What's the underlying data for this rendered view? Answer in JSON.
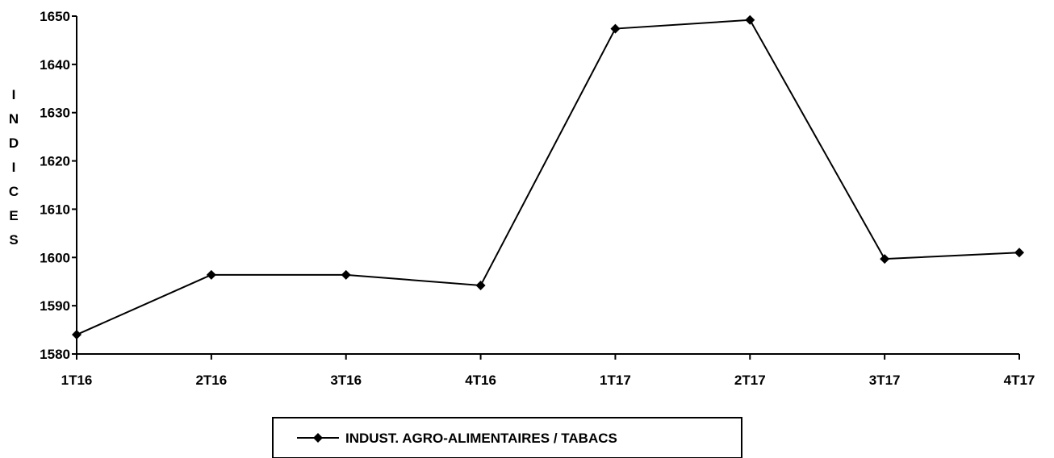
{
  "chart_data": {
    "type": "line",
    "categories": [
      "1T16",
      "2T16",
      "3T16",
      "4T16",
      "1T17",
      "2T17",
      "3T17",
      "4T17"
    ],
    "series": [
      {
        "name": "INDUST. AGRO-ALIMENTAIRES / TABACS",
        "values": [
          1584.0,
          1596.4,
          1596.4,
          1594.2,
          1647.4,
          1649.2,
          1599.7,
          1601.0
        ],
        "color": "#000000",
        "marker": "diamond"
      }
    ],
    "title": "",
    "xlabel": "",
    "ylabel": "INDICES",
    "ylim": [
      1580,
      1650
    ],
    "yticks": [
      "1580",
      "1590",
      "1600",
      "1610",
      "1620",
      "1630",
      "1640",
      "1650"
    ],
    "grid": false,
    "legend": "bottom-center"
  }
}
